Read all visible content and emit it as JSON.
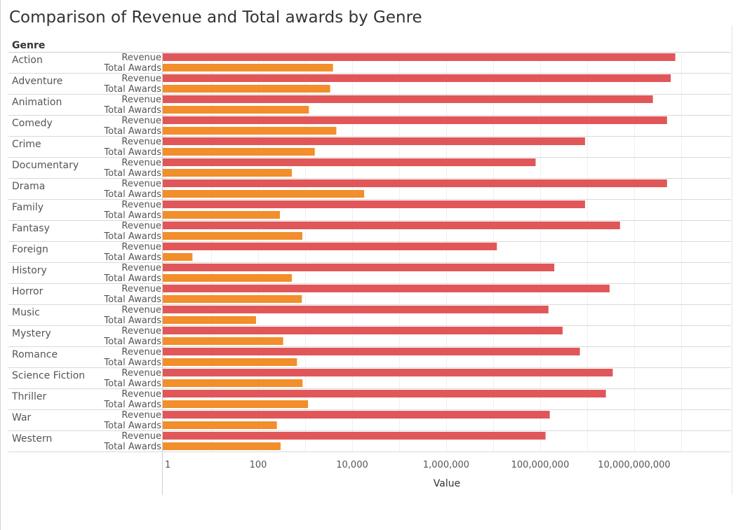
{
  "page": {
    "title": "Comparison of Revenue and Total awards by Genre"
  },
  "chart_data": {
    "type": "bar",
    "orientation": "horizontal",
    "title": "Comparison of Revenue and Total awards by Genre",
    "row_header": "Genre",
    "xlabel": "Value",
    "ylabel": "",
    "x_scale": "log",
    "xlim": [
      1,
      90000000000
    ],
    "x_ticks": [
      1,
      100,
      10000,
      1000000,
      100000000,
      10000000000
    ],
    "x_tick_labels": [
      "1",
      "100",
      "10,000",
      "1,000,000",
      "100,000,000",
      "10,000,000,000"
    ],
    "grid": true,
    "categories": [
      "Action",
      "Adventure",
      "Animation",
      "Comedy",
      "Crime",
      "Documentary",
      "Drama",
      "Family",
      "Fantasy",
      "Foreign",
      "History",
      "Horror",
      "Music",
      "Mystery",
      "Romance",
      "Science Fiction",
      "Thriller",
      "War",
      "Western"
    ],
    "series": [
      {
        "name": "Revenue",
        "color": "#e15759",
        "values": [
          75000000000,
          60000000000,
          25000000000,
          50000000000,
          900000000,
          80000000,
          50000000000,
          900000000,
          5000000000,
          12000000,
          200000000,
          3000000000,
          150000000,
          300000000,
          700000000,
          3500000000,
          2500000000,
          160000000,
          130000000
        ]
      },
      {
        "name": "Total Awards",
        "color": "#f28e2b",
        "values": [
          3900,
          3400,
          1200,
          4600,
          1600,
          520,
          18000,
          290,
          870,
          4,
          520,
          850,
          90,
          340,
          670,
          880,
          1150,
          250,
          300
        ]
      }
    ]
  }
}
